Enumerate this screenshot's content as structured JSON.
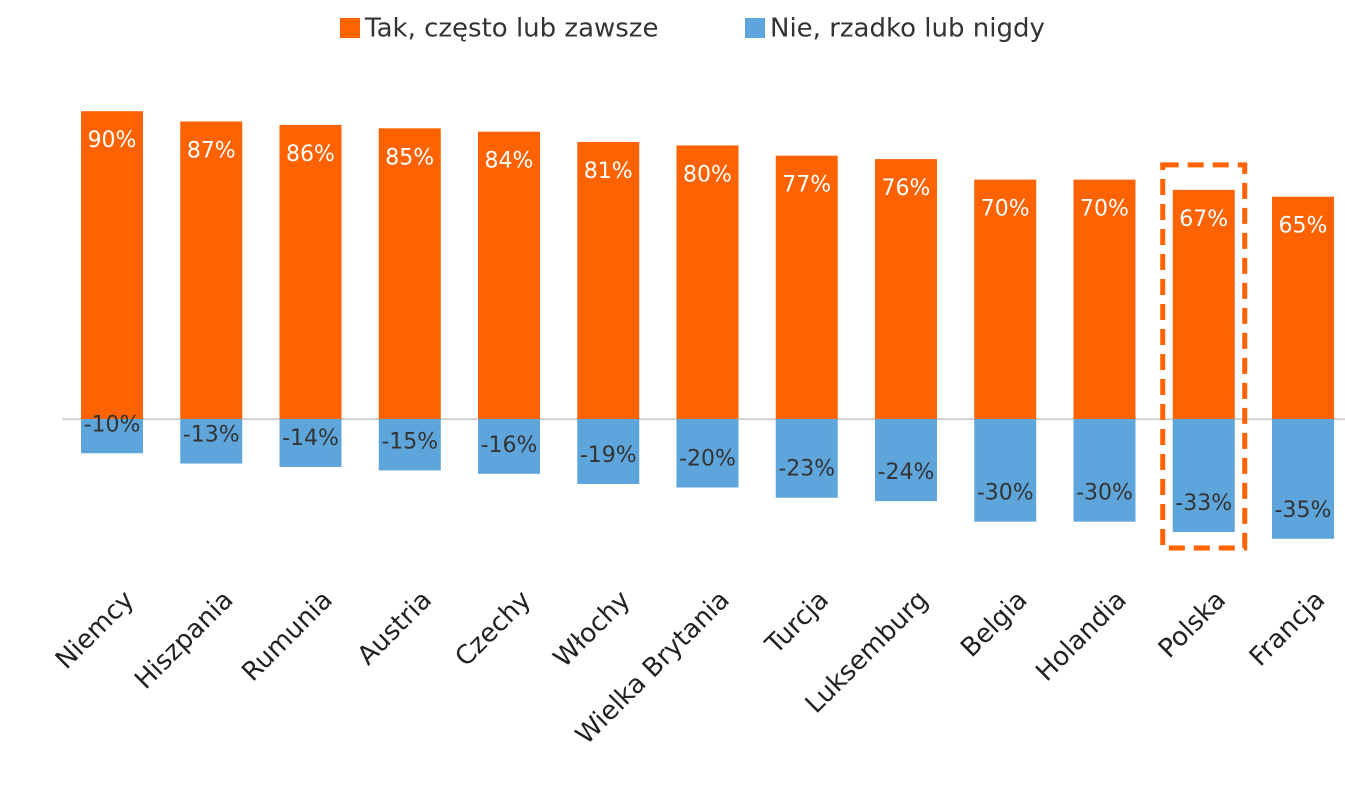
{
  "chart_data": {
    "type": "bar",
    "categories": [
      "Niemcy",
      "Hiszpania",
      "Rumunia",
      "Austria",
      "Czechy",
      "Włochy",
      "Wielka Brytania",
      "Turcja",
      "Luksemburg",
      "Belgia",
      "Holandia",
      "Polska",
      "Francja"
    ],
    "series": [
      {
        "name": "Tak, często lub zawsze",
        "color": "#ff6200",
        "values": [
          90,
          87,
          86,
          85,
          84,
          81,
          80,
          77,
          76,
          70,
          70,
          67,
          65
        ],
        "value_labels": [
          "90%",
          "87%",
          "86%",
          "85%",
          "84%",
          "81%",
          "80%",
          "77%",
          "76%",
          "70%",
          "70%",
          "67%",
          "65%"
        ]
      },
      {
        "name": "Nie, rzadko lub nigdy",
        "color": "#5ea5dc",
        "values": [
          -10,
          -13,
          -14,
          -15,
          -16,
          -19,
          -20,
          -23,
          -24,
          -30,
          -30,
          -33,
          -35
        ],
        "value_labels": [
          "-10%",
          "-13%",
          "-14%",
          "-15%",
          "-16%",
          "-19%",
          "-20%",
          "-23%",
          "-24%",
          "-30%",
          "-30%",
          "-33%",
          "-35%"
        ]
      }
    ],
    "ylim": [
      -45,
      100
    ],
    "highlight": "Polska",
    "highlight_color": "#ff6200",
    "legend": "top"
  }
}
